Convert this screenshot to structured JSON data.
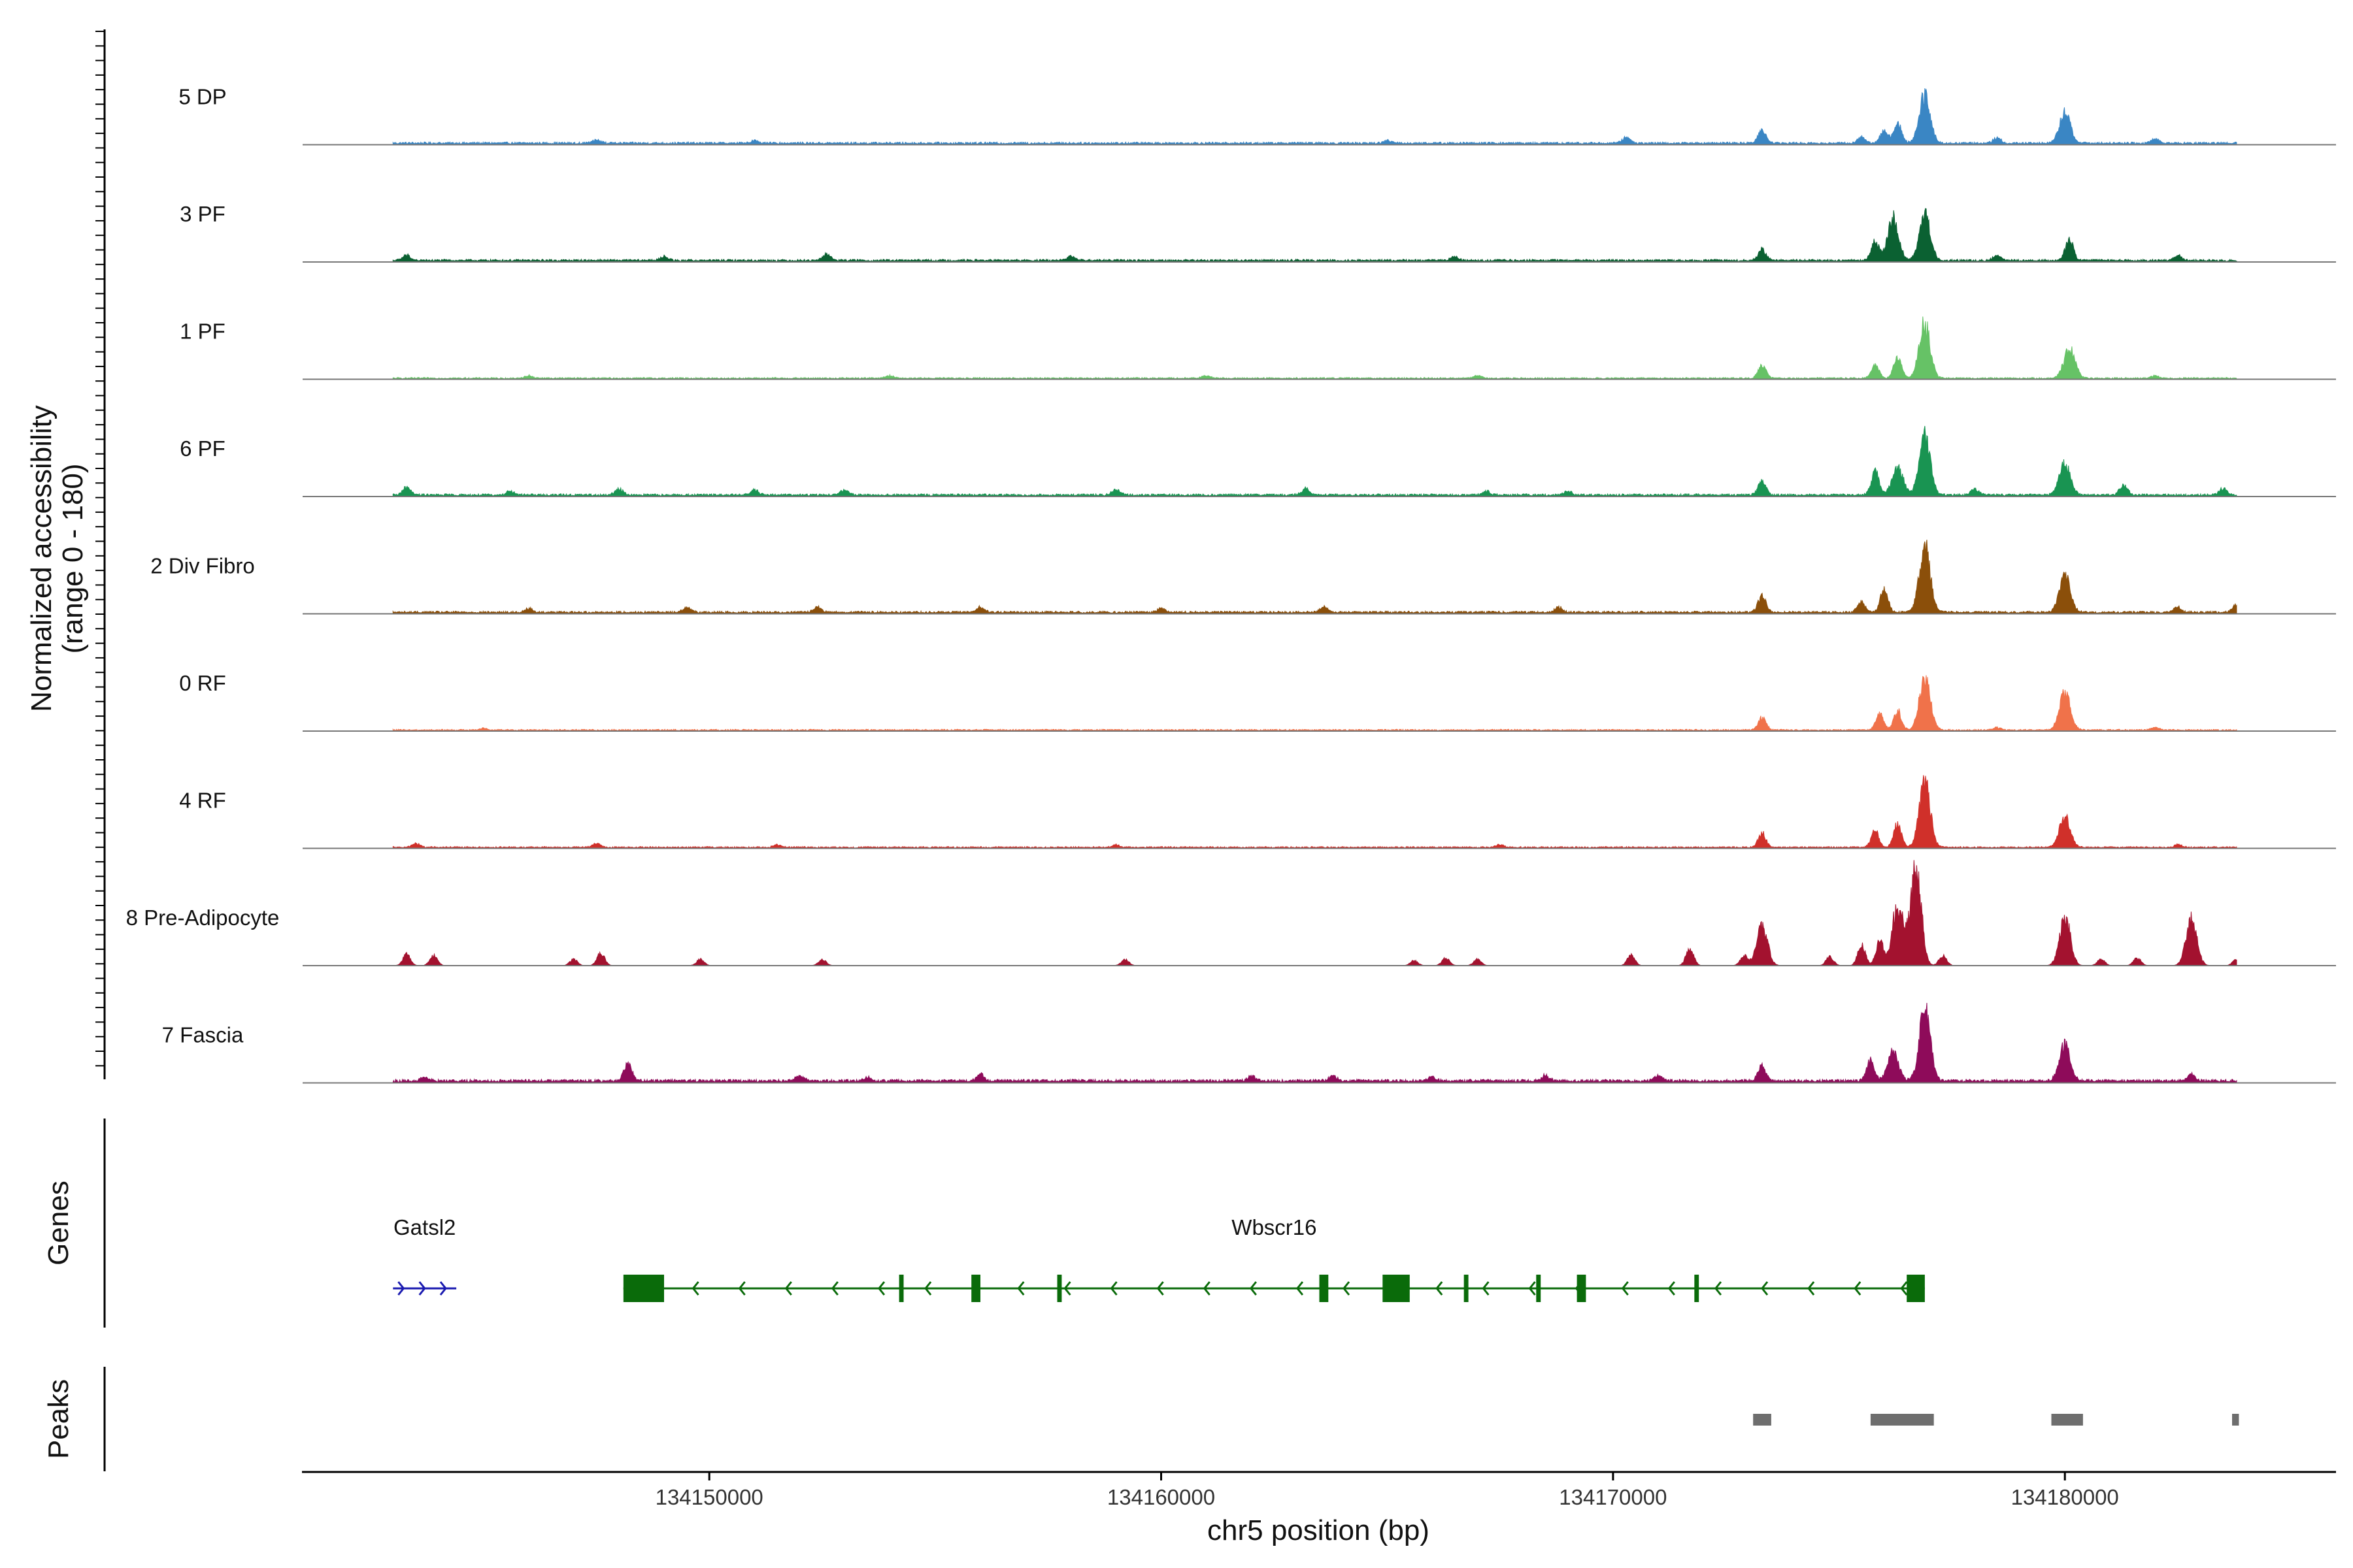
{
  "chart_data": {
    "type": "area",
    "y_axis_title_line1": "Normalized accessibility",
    "y_axis_title_line2": "(range 0 - 180)",
    "ylim": [
      0,
      180
    ],
    "x_axis_title": "chr5 position (bp)",
    "xlim": [
      134141000,
      134186000
    ],
    "x_ticks": [
      134150000,
      134160000,
      134170000,
      134180000
    ],
    "x_tick_labels": [
      "134150000",
      "134160000",
      "134170000",
      "134180000"
    ],
    "data_start": 134143000,
    "data_end": 134183800,
    "tracks": [
      {
        "name": "5 DP",
        "color": "#3a86c4",
        "baseline": 3,
        "peaks": [
          [
            134147500,
            6
          ],
          [
            134151000,
            4
          ],
          [
            134165000,
            4
          ],
          [
            134170300,
            10
          ],
          [
            134173300,
            22
          ],
          [
            134175500,
            10
          ],
          [
            134176000,
            20
          ],
          [
            134176300,
            32
          ],
          [
            134176900,
            78
          ],
          [
            134178500,
            8
          ],
          [
            134180000,
            48
          ],
          [
            134182000,
            6
          ]
        ]
      },
      {
        "name": "3 PF",
        "color": "#0b6132",
        "baseline": 3,
        "peaks": [
          [
            134143300,
            8
          ],
          [
            134149000,
            6
          ],
          [
            134152600,
            10
          ],
          [
            134158000,
            8
          ],
          [
            134166500,
            6
          ],
          [
            134173300,
            18
          ],
          [
            134175800,
            30
          ],
          [
            134176200,
            68
          ],
          [
            134176900,
            72
          ],
          [
            134178500,
            8
          ],
          [
            134180100,
            35
          ],
          [
            134182500,
            8
          ]
        ]
      },
      {
        "name": "1 PF",
        "color": "#66c266",
        "baseline": 2,
        "peaks": [
          [
            134146000,
            4
          ],
          [
            134154000,
            4
          ],
          [
            134161000,
            4
          ],
          [
            134167000,
            4
          ],
          [
            134173300,
            20
          ],
          [
            134175800,
            20
          ],
          [
            134176300,
            34
          ],
          [
            134176900,
            88
          ],
          [
            134180100,
            48
          ],
          [
            134182000,
            4
          ]
        ]
      },
      {
        "name": "6 PF",
        "color": "#199452",
        "baseline": 3,
        "peaks": [
          [
            134143300,
            12
          ],
          [
            134145600,
            6
          ],
          [
            134148000,
            10
          ],
          [
            134151000,
            8
          ],
          [
            134153000,
            8
          ],
          [
            134159000,
            8
          ],
          [
            134163200,
            10
          ],
          [
            134167200,
            6
          ],
          [
            134169000,
            6
          ],
          [
            134173300,
            22
          ],
          [
            134175800,
            38
          ],
          [
            134176300,
            44
          ],
          [
            134176900,
            92
          ],
          [
            134178000,
            10
          ],
          [
            134180000,
            50
          ],
          [
            134181300,
            16
          ],
          [
            134183500,
            10
          ]
        ]
      },
      {
        "name": "2 Div Fibro",
        "color": "#8b4f0a",
        "baseline": 3,
        "peaks": [
          [
            134146000,
            6
          ],
          [
            134149500,
            8
          ],
          [
            134152400,
            8
          ],
          [
            134156000,
            8
          ],
          [
            134160000,
            6
          ],
          [
            134163600,
            8
          ],
          [
            134168800,
            8
          ],
          [
            134173300,
            26
          ],
          [
            134175500,
            16
          ],
          [
            134176000,
            36
          ],
          [
            134176900,
            104
          ],
          [
            134180000,
            58
          ],
          [
            134182500,
            8
          ],
          [
            134183800,
            12
          ]
        ]
      },
      {
        "name": "0 RF",
        "color": "#f0724a",
        "baseline": 2,
        "peaks": [
          [
            134145000,
            3
          ],
          [
            134173300,
            20
          ],
          [
            134175900,
            26
          ],
          [
            134176300,
            30
          ],
          [
            134176900,
            82
          ],
          [
            134178500,
            4
          ],
          [
            134180000,
            58
          ],
          [
            134182000,
            4
          ]
        ]
      },
      {
        "name": "4 RF",
        "color": "#d0302a",
        "baseline": 2,
        "peaks": [
          [
            134143500,
            6
          ],
          [
            134147500,
            6
          ],
          [
            134151500,
            4
          ],
          [
            134159000,
            4
          ],
          [
            134167500,
            4
          ],
          [
            134173300,
            22
          ],
          [
            134175800,
            26
          ],
          [
            134176300,
            38
          ],
          [
            134176900,
            102
          ],
          [
            134180000,
            48
          ],
          [
            134182500,
            4
          ]
        ]
      },
      {
        "name": "8 Pre-Adipocyte",
        "color": "#a3122f",
        "baseline": 0,
        "peaks": [
          [
            134143300,
            18
          ],
          [
            134143900,
            16
          ],
          [
            134147000,
            10
          ],
          [
            134147600,
            20
          ],
          [
            134149800,
            10
          ],
          [
            134152500,
            10
          ],
          [
            134159200,
            10
          ],
          [
            134165600,
            8
          ],
          [
            134166300,
            12
          ],
          [
            134167000,
            10
          ],
          [
            134170400,
            16
          ],
          [
            134171700,
            28
          ],
          [
            134172900,
            16
          ],
          [
            134173300,
            62
          ],
          [
            134174800,
            14
          ],
          [
            134175500,
            32
          ],
          [
            134175900,
            40
          ],
          [
            134176300,
            96
          ],
          [
            134176700,
            154
          ],
          [
            134177300,
            16
          ],
          [
            134180000,
            78
          ],
          [
            134180800,
            10
          ],
          [
            134181600,
            12
          ],
          [
            134182800,
            74
          ],
          [
            134183800,
            10
          ]
        ]
      },
      {
        "name": "7 Fascia",
        "color": "#8e0b5a",
        "baseline": 4,
        "peaks": [
          [
            134143700,
            6
          ],
          [
            134148200,
            28
          ],
          [
            134152000,
            8
          ],
          [
            134153500,
            6
          ],
          [
            134156000,
            10
          ],
          [
            134162000,
            8
          ],
          [
            134163800,
            8
          ],
          [
            134166000,
            6
          ],
          [
            134168500,
            8
          ],
          [
            134171000,
            8
          ],
          [
            134173300,
            24
          ],
          [
            134175700,
            34
          ],
          [
            134176200,
            44
          ],
          [
            134176900,
            114
          ],
          [
            134180000,
            56
          ],
          [
            134182800,
            10
          ]
        ]
      }
    ],
    "genes": [
      {
        "name": "Gatsl2",
        "strand": "+",
        "start": 134143000,
        "end": 134144400,
        "color": "#1a1ab0",
        "exons": []
      },
      {
        "name": "Wbscr16",
        "strand": "-",
        "start": 134148100,
        "end": 134176900,
        "color": "#0a6b0a",
        "exons": [
          [
            134148100,
            134149000
          ],
          [
            134154200,
            134154300
          ],
          [
            134155800,
            134156000
          ],
          [
            134157700,
            134157800
          ],
          [
            134163500,
            134163700
          ],
          [
            134164900,
            134165500
          ],
          [
            134166700,
            134166800
          ],
          [
            134168300,
            134168400
          ],
          [
            134169200,
            134169400
          ],
          [
            134171800,
            134171900
          ],
          [
            134176500,
            134176900
          ]
        ]
      }
    ],
    "genes_track_title": "Genes",
    "peaks_track_title": "Peaks",
    "peak_color": "#6e6e6e",
    "peak_regions": [
      [
        134173100,
        134173500
      ],
      [
        134175700,
        134177100
      ],
      [
        134179700,
        134180400
      ],
      [
        134183700,
        134183850
      ]
    ]
  }
}
